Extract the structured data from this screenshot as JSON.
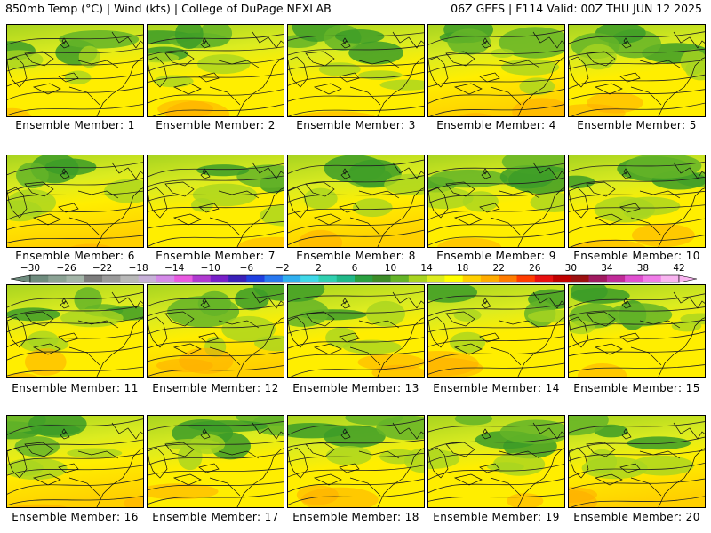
{
  "header": {
    "left": "850mb Temp (°C) | Wind (kts) | College of DuPage NEXLAB",
    "right": "06Z GEFS | F114 Valid: 00Z THU JUN 12 2025"
  },
  "panel_label_prefix": "Ensemble Member:",
  "members": [
    {
      "id": 1,
      "label": "Ensemble Member: 1"
    },
    {
      "id": 2,
      "label": "Ensemble Member: 2"
    },
    {
      "id": 3,
      "label": "Ensemble Member: 3"
    },
    {
      "id": 4,
      "label": "Ensemble Member: 4"
    },
    {
      "id": 5,
      "label": "Ensemble Member: 5"
    },
    {
      "id": 6,
      "label": "Ensemble Member: 6"
    },
    {
      "id": 7,
      "label": "Ensemble Member: 7"
    },
    {
      "id": 8,
      "label": "Ensemble Member: 8"
    },
    {
      "id": 9,
      "label": "Ensemble Member: 9"
    },
    {
      "id": 10,
      "label": "Ensemble Member: 10"
    },
    {
      "id": 11,
      "label": "Ensemble Member: 11"
    },
    {
      "id": 12,
      "label": "Ensemble Member: 12"
    },
    {
      "id": 13,
      "label": "Ensemble Member: 13"
    },
    {
      "id": 14,
      "label": "Ensemble Member: 14"
    },
    {
      "id": 15,
      "label": "Ensemble Member: 15"
    },
    {
      "id": 16,
      "label": "Ensemble Member: 16"
    },
    {
      "id": 17,
      "label": "Ensemble Member: 17"
    },
    {
      "id": 18,
      "label": "Ensemble Member: 18"
    },
    {
      "id": 19,
      "label": "Ensemble Member: 19"
    },
    {
      "id": 20,
      "label": "Ensemble Member: 20"
    }
  ],
  "colorbar": {
    "tick_labels": [
      "-30",
      "-26",
      "-22",
      "-18",
      "-14",
      "-10",
      "-6",
      "-2",
      "2",
      "6",
      "10",
      "14",
      "18",
      "22",
      "26",
      "30",
      "34",
      "38",
      "42"
    ],
    "colors": [
      "#6f8c7e",
      "#8ba294",
      "#a3b5a8",
      "#7c7c7c",
      "#9a9a9a",
      "#b8b8b8",
      "#c7b0d8",
      "#d48ae8",
      "#e85ae0",
      "#b03ad0",
      "#7820c8",
      "#3a20b8",
      "#2040e0",
      "#2878f0",
      "#30b0f0",
      "#40d8e8",
      "#30d0b0",
      "#20b888",
      "#2aa040",
      "#3c8c28",
      "#64b428",
      "#a8d420",
      "#dcec20",
      "#ffff00",
      "#ffd000",
      "#ffac00",
      "#ff7c00",
      "#ff3c00",
      "#e81010",
      "#c00000",
      "#9c1010",
      "#a01a60",
      "#c02a98",
      "#e050d0",
      "#f07ce8",
      "#f8b4f0"
    ],
    "colors_note": "temperature shading from cold to warm"
  },
  "palette": {
    "cold_green": "#3c9c28",
    "mid_green": "#64b428",
    "light_green": "#a8d420",
    "yellow_green": "#dcec20",
    "yellow": "#ffee00",
    "warm_yellow": "#ffd000",
    "orange": "#ffac00"
  }
}
